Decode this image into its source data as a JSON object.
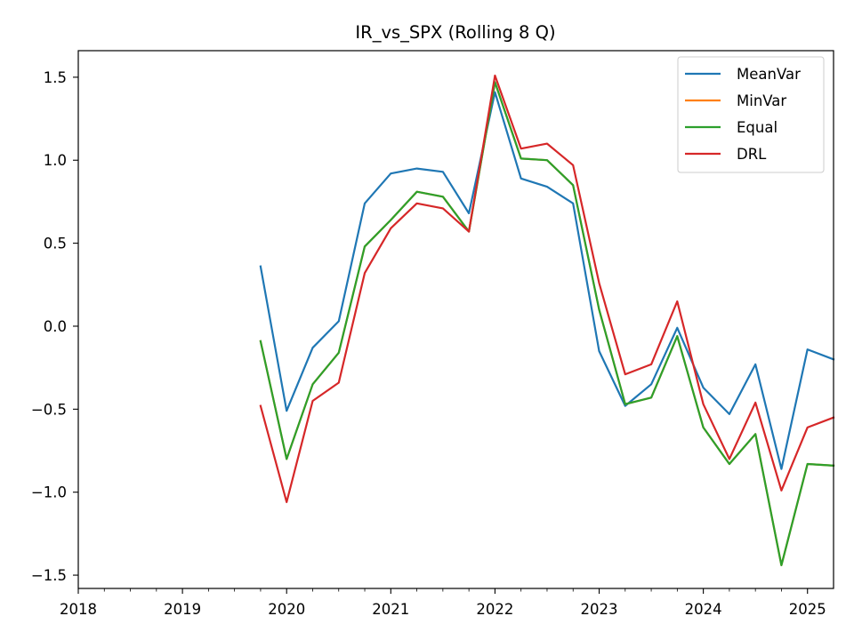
{
  "chart_data": {
    "type": "line",
    "title": "IR_vs_SPX (Rolling 8 Q)",
    "xlabel": "",
    "ylabel": "",
    "x_ticks": [
      "2018",
      "2019",
      "2020",
      "2021",
      "2022",
      "2023",
      "2024",
      "2025"
    ],
    "y_ticks": [
      "1.5",
      "1.0",
      "0.5",
      "0.0",
      "−0.5",
      "−1.0",
      "−1.5"
    ],
    "xlim": [
      "2018-01-01",
      "2025-04-01"
    ],
    "ylim": [
      -1.58,
      1.66
    ],
    "grid": false,
    "legend_position": "top-right",
    "x": [
      "2019-10-01",
      "2020-01-01",
      "2020-04-01",
      "2020-07-01",
      "2020-10-01",
      "2021-01-01",
      "2021-04-01",
      "2021-07-01",
      "2021-10-01",
      "2022-01-01",
      "2022-04-01",
      "2022-07-01",
      "2022-10-01",
      "2023-01-01",
      "2023-04-01",
      "2023-07-01",
      "2023-10-01",
      "2024-01-01",
      "2024-04-01",
      "2024-07-01",
      "2024-10-01",
      "2025-01-01",
      "2025-04-01"
    ],
    "series": [
      {
        "name": "MeanVar",
        "color": "#1f77b4",
        "values": [
          0.36,
          -0.51,
          -0.13,
          0.03,
          0.74,
          0.92,
          0.95,
          0.93,
          0.68,
          1.41,
          0.89,
          0.84,
          0.74,
          -0.15,
          -0.48,
          -0.35,
          -0.01,
          -0.37,
          -0.53,
          -0.23,
          -0.86,
          -0.14,
          -0.2
        ]
      },
      {
        "name": "MinVar",
        "color": "#ff7f0e",
        "values": [
          -0.09,
          -0.8,
          -0.35,
          -0.16,
          0.48,
          0.64,
          0.81,
          0.78,
          0.57,
          1.47,
          1.01,
          1.0,
          0.85,
          0.1,
          -0.47,
          -0.43,
          -0.06,
          -0.61,
          -0.83,
          -0.65,
          -1.44,
          -0.83,
          -0.84
        ]
      },
      {
        "name": "Equal",
        "color": "#2ca02c",
        "values": [
          -0.09,
          -0.8,
          -0.35,
          -0.16,
          0.48,
          0.64,
          0.81,
          0.78,
          0.57,
          1.47,
          1.01,
          1.0,
          0.85,
          0.1,
          -0.47,
          -0.43,
          -0.06,
          -0.61,
          -0.83,
          -0.65,
          -1.44,
          -0.83,
          -0.84
        ]
      },
      {
        "name": "DRL",
        "color": "#d62728",
        "values": [
          -0.48,
          -1.06,
          -0.45,
          -0.34,
          0.32,
          0.59,
          0.74,
          0.71,
          0.57,
          1.51,
          1.07,
          1.1,
          0.97,
          0.26,
          -0.29,
          -0.23,
          0.15,
          -0.47,
          -0.8,
          -0.46,
          -0.99,
          -0.61,
          -0.55
        ]
      }
    ]
  }
}
